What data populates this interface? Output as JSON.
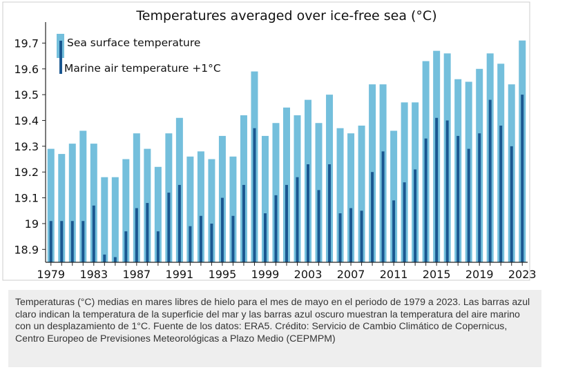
{
  "chart_data": {
    "type": "bar",
    "title": "Temperatures averaged over ice-free sea (°C)",
    "xlabel": "",
    "ylabel": "",
    "ylim": [
      18.85,
      19.76
    ],
    "yticks": [
      18.9,
      19,
      19.1,
      19.2,
      19.3,
      19.4,
      19.5,
      19.6,
      19.7
    ],
    "ytick_labels": [
      "18.9",
      "19",
      "19.1",
      "19.2",
      "19.3",
      "19.4",
      "19.5",
      "19.6",
      "19.7"
    ],
    "xtick_labels": [
      "1979",
      "1983",
      "1987",
      "1991",
      "1995",
      "1999",
      "2003",
      "2007",
      "2011",
      "2015",
      "2019",
      "2023"
    ],
    "grid": false,
    "legend_position": "top-left",
    "categories": [
      1979,
      1980,
      1981,
      1982,
      1983,
      1984,
      1985,
      1986,
      1987,
      1988,
      1989,
      1990,
      1991,
      1992,
      1993,
      1994,
      1995,
      1996,
      1997,
      1998,
      1999,
      2000,
      2001,
      2002,
      2003,
      2004,
      2005,
      2006,
      2007,
      2008,
      2009,
      2010,
      2011,
      2012,
      2013,
      2014,
      2015,
      2016,
      2017,
      2018,
      2019,
      2020,
      2021,
      2022,
      2023
    ],
    "series": [
      {
        "name": "Sea surface temperature",
        "color": "#74bfdc",
        "values": [
          19.29,
          19.27,
          19.31,
          19.36,
          19.31,
          19.18,
          19.18,
          19.25,
          19.35,
          19.29,
          19.22,
          19.35,
          19.41,
          19.26,
          19.28,
          19.25,
          19.34,
          19.26,
          19.42,
          19.59,
          19.34,
          19.39,
          19.45,
          19.42,
          19.48,
          19.39,
          19.5,
          19.37,
          19.35,
          19.38,
          19.54,
          19.54,
          19.36,
          19.47,
          19.47,
          19.63,
          19.67,
          19.66,
          19.56,
          19.55,
          19.6,
          19.66,
          19.62,
          19.54,
          19.71
        ]
      },
      {
        "name": "Marine air temperature +1°C",
        "color": "#1a5790",
        "values": [
          19.01,
          19.01,
          19.01,
          19.01,
          19.07,
          18.88,
          18.87,
          18.97,
          19.06,
          19.08,
          18.97,
          19.12,
          19.15,
          18.99,
          19.03,
          19.0,
          19.1,
          19.03,
          19.15,
          19.37,
          19.04,
          19.11,
          19.15,
          19.18,
          19.23,
          19.13,
          19.23,
          19.04,
          19.06,
          19.05,
          19.2,
          19.28,
          19.09,
          19.16,
          19.21,
          19.33,
          19.41,
          19.4,
          19.34,
          19.29,
          19.35,
          19.48,
          19.38,
          19.3,
          19.5
        ]
      }
    ]
  },
  "caption": "Temperaturas (°C) medias en mares libres de hielo para el mes de mayo en el periodo de 1979 a 2023. Las barras azul claro indican la temperatura de la superficie del mar y las barras azul oscuro muestran la temperatura del aire marino con un desplazamiento de 1°C. Fuente de los datos: ERA5. Crédito: Servicio de Cambio Climático de Copernicus, Centro Europeo de Previsiones Meteorológicas a Plazo Medio (CEPMPM)",
  "colors": {
    "frame": "#cccccc",
    "axis": "#222222",
    "caption_bg": "#eeeeee"
  }
}
